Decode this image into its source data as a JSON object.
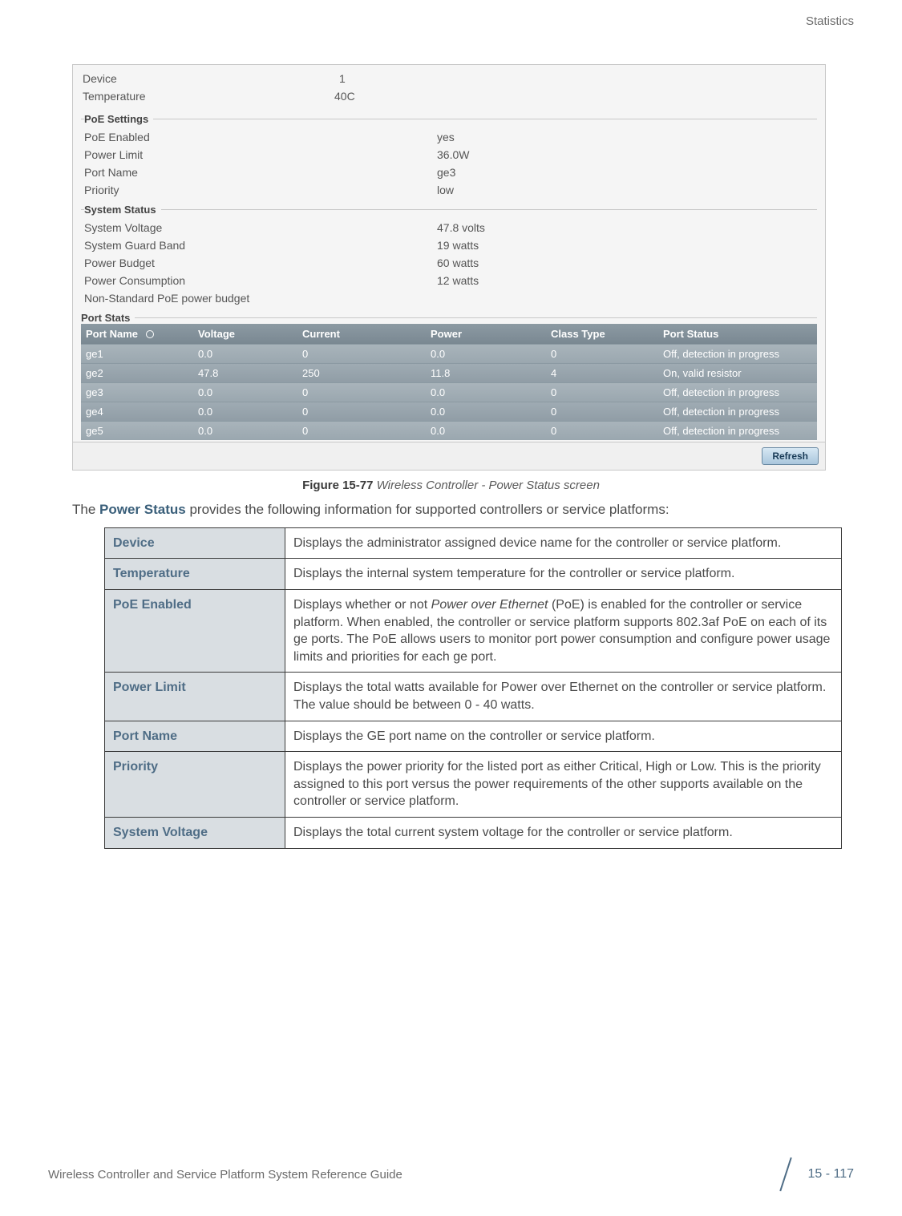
{
  "header": {
    "section": "Statistics"
  },
  "ui": {
    "top": {
      "device_label": "Device",
      "device_value": "1",
      "temp_label": "Temperature",
      "temp_value": "40C"
    },
    "poe": {
      "legend": "PoE Settings",
      "rows": [
        {
          "label": "PoE Enabled",
          "value": "yes"
        },
        {
          "label": "Power Limit",
          "value": "36.0W"
        },
        {
          "label": "Port Name",
          "value": "ge3"
        },
        {
          "label": "Priority",
          "value": "low"
        }
      ]
    },
    "system": {
      "legend": "System Status",
      "rows": [
        {
          "label": "System Voltage",
          "value": "47.8 volts"
        },
        {
          "label": "System Guard Band",
          "value": "19 watts"
        },
        {
          "label": "Power Budget",
          "value": "60 watts"
        },
        {
          "label": "Power Consumption",
          "value": "12 watts"
        },
        {
          "label": "Non-Standard PoE power budget",
          "value": ""
        }
      ]
    },
    "port_stats": {
      "legend": "Port Stats",
      "columns": [
        "Port Name",
        "Voltage",
        "Current",
        "Power",
        "Class Type",
        "Port Status"
      ],
      "rows": [
        {
          "pn": "ge1",
          "v": "0.0",
          "c": "0",
          "pw": "0.0",
          "ct": "0",
          "ps": "Off, detection in progress"
        },
        {
          "pn": "ge2",
          "v": "47.8",
          "c": "250",
          "pw": "11.8",
          "ct": "4",
          "ps": "On, valid resistor"
        },
        {
          "pn": "ge3",
          "v": "0.0",
          "c": "0",
          "pw": "0.0",
          "ct": "0",
          "ps": "Off, detection in progress"
        },
        {
          "pn": "ge4",
          "v": "0.0",
          "c": "0",
          "pw": "0.0",
          "ct": "0",
          "ps": "Off, detection in progress"
        },
        {
          "pn": "ge5",
          "v": "0.0",
          "c": "0",
          "pw": "0.0",
          "ct": "0",
          "ps": "Off, detection in progress"
        }
      ],
      "refresh_label": "Refresh"
    }
  },
  "figure": {
    "number": "Figure 15-77",
    "title": "Wireless Controller - Power Status screen"
  },
  "intro": {
    "pre": "The ",
    "strong": "Power Status",
    "post": " provides the following information for supported controllers or service platforms:"
  },
  "desc_table": [
    {
      "term": "Device",
      "def": "Displays the administrator assigned device name for the controller or service platform."
    },
    {
      "term": "Temperature",
      "def": "Displays the internal system temperature for the controller or service platform."
    },
    {
      "term": "PoE Enabled",
      "def": "Displays whether or not Power over Ethernet (PoE) is enabled for the controller or service platform. When enabled, the controller or service platform supports 802.3af PoE on each of its ge ports. The PoE allows users to monitor port power consumption and configure power usage limits and priorities for each ge port.",
      "italic": "Power over Ethernet"
    },
    {
      "term": "Power Limit",
      "def": "Displays the total watts available for Power over Ethernet on the controller or service platform. The value should be between 0 - 40 watts."
    },
    {
      "term": "Port Name",
      "def": "Displays the GE port name on the controller or service platform."
    },
    {
      "term": "Priority",
      "def": "Displays the power priority for the listed port as either Critical, High or Low. This is the priority assigned to this port versus the power requirements of the other supports available on the controller or service platform."
    },
    {
      "term": "System Voltage",
      "def": "Displays the total current system voltage for the controller or service platform."
    }
  ],
  "footer": {
    "left": "Wireless Controller and Service Platform System Reference Guide",
    "right": "15 - 117"
  },
  "colors": {
    "panel_bg": "#f5f5f5",
    "table_header_bg": "#7a8892",
    "table_row_bg": "#9fabb3",
    "term_bg": "#d9dee2",
    "term_fg": "#4f6d86",
    "border": "#3a3a3a"
  }
}
